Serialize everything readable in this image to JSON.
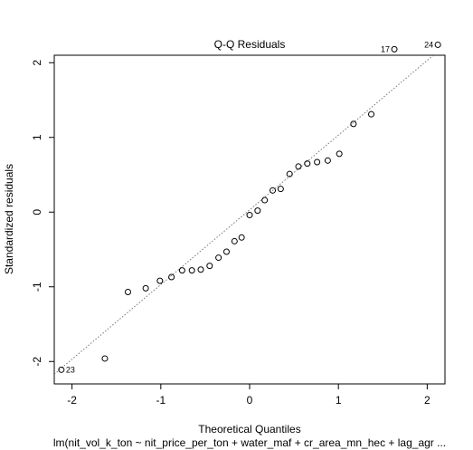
{
  "chart_data": {
    "type": "scatter",
    "title": "Q-Q Residuals",
    "xlabel": "Theoretical Quantiles",
    "ylabel": "Standardized residuals",
    "subtitle": "lm(nit_vol_k_ton ~ nit_price_per_ton + water_maf + cr_area_mn_hec + lag_agr ...",
    "xlim": [
      -2.2,
      2.2
    ],
    "ylim": [
      -2.3,
      2.1
    ],
    "xticks": [
      -2,
      -1,
      0,
      1,
      2
    ],
    "yticks": [
      -2,
      -1,
      0,
      1,
      2
    ],
    "reference_line": {
      "intercept": 0.03,
      "slope": 1.0
    },
    "grid": false,
    "points": [
      {
        "x": -2.12,
        "y": -2.11,
        "label": "23"
      },
      {
        "x": -1.63,
        "y": -1.96
      },
      {
        "x": -1.37,
        "y": -1.07
      },
      {
        "x": -1.17,
        "y": -1.02
      },
      {
        "x": -1.01,
        "y": -0.92
      },
      {
        "x": -0.88,
        "y": -0.87
      },
      {
        "x": -0.76,
        "y": -0.78
      },
      {
        "x": -0.65,
        "y": -0.78
      },
      {
        "x": -0.55,
        "y": -0.77
      },
      {
        "x": -0.45,
        "y": -0.72
      },
      {
        "x": -0.35,
        "y": -0.61
      },
      {
        "x": -0.26,
        "y": -0.53
      },
      {
        "x": -0.17,
        "y": -0.39
      },
      {
        "x": -0.09,
        "y": -0.34
      },
      {
        "x": 0.0,
        "y": -0.04
      },
      {
        "x": 0.09,
        "y": 0.02
      },
      {
        "x": 0.17,
        "y": 0.16
      },
      {
        "x": 0.26,
        "y": 0.29
      },
      {
        "x": 0.35,
        "y": 0.31
      },
      {
        "x": 0.45,
        "y": 0.51
      },
      {
        "x": 0.55,
        "y": 0.61
      },
      {
        "x": 0.65,
        "y": 0.65
      },
      {
        "x": 0.76,
        "y": 0.67
      },
      {
        "x": 0.88,
        "y": 0.69
      },
      {
        "x": 1.01,
        "y": 0.78
      },
      {
        "x": 1.17,
        "y": 1.18
      },
      {
        "x": 1.37,
        "y": 1.31
      },
      {
        "x": 1.63,
        "y": 2.18,
        "label": "17"
      },
      {
        "x": 2.12,
        "y": 2.24,
        "label": "24"
      }
    ]
  }
}
